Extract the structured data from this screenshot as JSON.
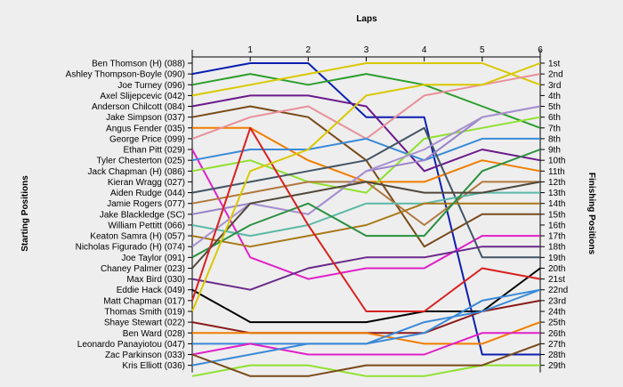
{
  "chart_data": {
    "type": "line",
    "title": "",
    "xlabel": "Laps",
    "ylabel_left": "Starting Positions",
    "ylabel_right": "Finishing Positions",
    "x": [
      0,
      1,
      2,
      3,
      4,
      5,
      6
    ],
    "x_tick_labels": [
      "1",
      "2",
      "3",
      "4",
      "5",
      "6"
    ],
    "y_range": [
      1,
      29
    ],
    "position_labels": [
      "1st",
      "2nd",
      "3rd",
      "4th",
      "5th",
      "6th",
      "7th",
      "8th",
      "9th",
      "10th",
      "11th",
      "12th",
      "13th",
      "14th",
      "15th",
      "16th",
      "17th",
      "18th",
      "19th",
      "20th",
      "21st",
      "22nd",
      "23rd",
      "24th",
      "25th",
      "26th",
      "27th",
      "28th",
      "29th"
    ],
    "series": [
      {
        "name": "Ben Thomson (H) (088)",
        "color": "#0b1fb0",
        "values": [
          2,
          1,
          1,
          6,
          6,
          28,
          28
        ]
      },
      {
        "name": "Ashley Thompson-Boyle (090)",
        "color": "#2d9e2d",
        "values": [
          3,
          2,
          3,
          2,
          3,
          5,
          7
        ]
      },
      {
        "name": "Joe Turney (096)",
        "color": "#d9c800",
        "values": [
          4,
          3,
          2,
          1,
          1,
          1,
          3
        ]
      },
      {
        "name": "Axel Slijepcevic (042)",
        "color": "#6a1a8a",
        "values": [
          5,
          4,
          4,
          5,
          11,
          9,
          10
        ]
      },
      {
        "name": "Anderson Chilcott (084)",
        "color": "#7a4a1a",
        "values": [
          6,
          5,
          6,
          10,
          18,
          15,
          15
        ]
      },
      {
        "name": "Jake Simpson (037)",
        "color": "#f07d00",
        "values": [
          7,
          7,
          10,
          12,
          12,
          10,
          11
        ]
      },
      {
        "name": "Angus Fender (035)",
        "color": "#e8909a",
        "values": [
          8,
          6,
          5,
          8,
          4,
          3,
          2
        ]
      },
      {
        "name": "George Price (099)",
        "color": "#e020c8",
        "values": [
          9,
          19,
          21,
          20,
          20,
          17,
          17
        ]
      },
      {
        "name": "Ethan Pitt (029)",
        "color": "#3a8ad8",
        "values": [
          10,
          9,
          9,
          8,
          10,
          8,
          8
        ]
      },
      {
        "name": "Tyler Chesterton (025)",
        "color": "#90e030",
        "values": [
          11,
          10,
          12,
          13,
          8,
          7,
          6
        ]
      },
      {
        "name": "Jack Chapman (H) (086)",
        "color": "#445566",
        "values": [
          13,
          12,
          11,
          10,
          7,
          19,
          19
        ]
      },
      {
        "name": "Kieran Wragg (027)",
        "color": "#b07840",
        "values": [
          14,
          13,
          12,
          12,
          16,
          12,
          12
        ]
      },
      {
        "name": "Aiden Rudge (044)",
        "color": "#9a82c8",
        "values": [
          15,
          14,
          15,
          11,
          10,
          6,
          5
        ]
      },
      {
        "name": "Jamie Rogers (077)",
        "color": "#5cb8a8",
        "values": [
          16,
          17,
          16,
          14,
          14,
          13,
          13
        ]
      },
      {
        "name": "Jake Blackledge (SC)",
        "color": "#a87818",
        "values": [
          17,
          18,
          17,
          16,
          14,
          14,
          14
        ]
      },
      {
        "name": "William Pettitt (066)",
        "color": "#a890d0",
        "values": [
          18,
          14,
          15,
          11,
          9,
          6,
          5
        ]
      },
      {
        "name": "Keaton Samra (H) (057)",
        "color": "#2a9040",
        "values": [
          19,
          16,
          14,
          17,
          17,
          11,
          9
        ]
      },
      {
        "name": "Nicholas Figurado (H) (074)",
        "color": "#50483a",
        "values": [
          20,
          14,
          13,
          12,
          13,
          13,
          12
        ]
      },
      {
        "name": "Joe Taylor (091)",
        "color": "#6a2a8a",
        "values": [
          21,
          22,
          20,
          19,
          19,
          18,
          18
        ]
      },
      {
        "name": "Chaney Palmer (023)",
        "color": "#000000",
        "values": [
          22,
          25,
          25,
          25,
          24,
          24,
          20
        ]
      },
      {
        "name": "Max Bird (030)",
        "color": "#d82020",
        "values": [
          23,
          7,
          16,
          24,
          24,
          20,
          21
        ]
      },
      {
        "name": "Eddie Hack (049)",
        "color": "#d9c800",
        "values": [
          24,
          11,
          9,
          4,
          3,
          3,
          1
        ]
      },
      {
        "name": "Matt Chapman (017)",
        "color": "#8a1a1a",
        "values": [
          25,
          26,
          26,
          26,
          26,
          24,
          23
        ]
      },
      {
        "name": "Thomas Smith (019)",
        "color": "#f07d00",
        "values": [
          26,
          26,
          26,
          26,
          27,
          27,
          25
        ]
      },
      {
        "name": "Shaye Stewart (022)",
        "color": "#3a8ad8",
        "values": [
          27,
          27,
          27,
          27,
          26,
          23,
          22
        ]
      },
      {
        "name": "Ben Ward (028)",
        "color": "#e020c8",
        "values": [
          28,
          27,
          28,
          28,
          28,
          26,
          26
        ]
      },
      {
        "name": "Leonardo Panayiotou (047)",
        "color": "#3a8ad8",
        "values": [
          29,
          28,
          27,
          27,
          25,
          24,
          22
        ]
      },
      {
        "name": "Zac Parkinson (033)",
        "color": "#90e030",
        "values": [
          30,
          29,
          29,
          30,
          30,
          29,
          29
        ]
      },
      {
        "name": "Kris Elliott (036)",
        "color": "#7a4a1a",
        "values": [
          28,
          30,
          30,
          29,
          29,
          29,
          27
        ]
      }
    ],
    "start_labels": [
      "Ben Thomson (H) (088)",
      "Ashley Thompson-Boyle (090)",
      "Joe Turney (096)",
      "Axel Slijepcevic (042)",
      "Anderson Chilcott (084)",
      "Jake Simpson (037)",
      "Angus Fender (035)",
      "George Price (099)",
      "Ethan Pitt (029)",
      "Tyler Chesterton (025)",
      "Jack Chapman (H) (086)",
      "Kieran Wragg (027)",
      "Aiden Rudge (044)",
      "Jamie Rogers (077)",
      "Jake Blackledge (SC)",
      "William Pettitt (066)",
      "Keaton Samra (H) (057)",
      "Nicholas Figurado (H) (074)",
      "Joe Taylor (091)",
      "Chaney Palmer (023)",
      "Max Bird (030)",
      "Eddie Hack (049)",
      "Matt Chapman (017)",
      "Thomas Smith (019)",
      "Shaye Stewart (022)",
      "Ben Ward (028)",
      "Leonardo Panayiotou (047)",
      "Zac Parkinson (033)",
      "Kris Elliott (036)"
    ],
    "grid": false
  }
}
